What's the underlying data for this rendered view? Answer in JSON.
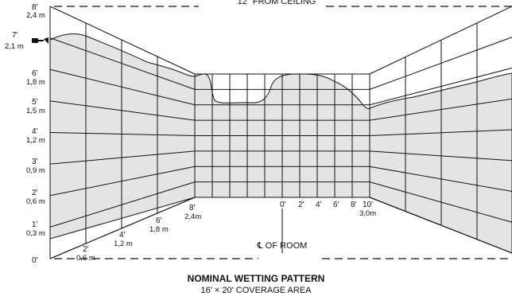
{
  "header": {
    "ceiling_note": "12\" FROM CEILING"
  },
  "left_wall_height_labels": [
    {
      "ft": "8'",
      "m": "2,4 m"
    },
    {
      "ft": "7'",
      "m": "2,1 m"
    },
    {
      "ft": "6'",
      "m": "1,8 m"
    },
    {
      "ft": "5'",
      "m": "1,5 m"
    },
    {
      "ft": "4'",
      "m": "1,2 m"
    },
    {
      "ft": "3'",
      "m": "0,9 m"
    },
    {
      "ft": "2'",
      "m": "0,6 m"
    },
    {
      "ft": "1'",
      "m": "0,3 m"
    },
    {
      "ft": "0'",
      "m": ""
    }
  ],
  "floor_depth_labels": [
    {
      "ft": "2'",
      "m": "0,6 m"
    },
    {
      "ft": "4'",
      "m": "1,2 m"
    },
    {
      "ft": "6'",
      "m": "1,8 m"
    },
    {
      "ft": "8'",
      "m": "2,4m"
    }
  ],
  "back_wall_labels": [
    "0'",
    "2'",
    "4'",
    "6'",
    "8'",
    "10'"
  ],
  "back_wall_metric": "3,0m",
  "centerline_label": "℄ OF ROOM",
  "caption": {
    "title": "NOMINAL WETTING PATTERN",
    "subtitle": "16' × 20' COVERAGE AREA"
  },
  "colors": {
    "wetted_fill": "#e4e4e4",
    "line": "#111111"
  },
  "icons": {
    "sprinkler": "sprinkler-head-icon"
  }
}
